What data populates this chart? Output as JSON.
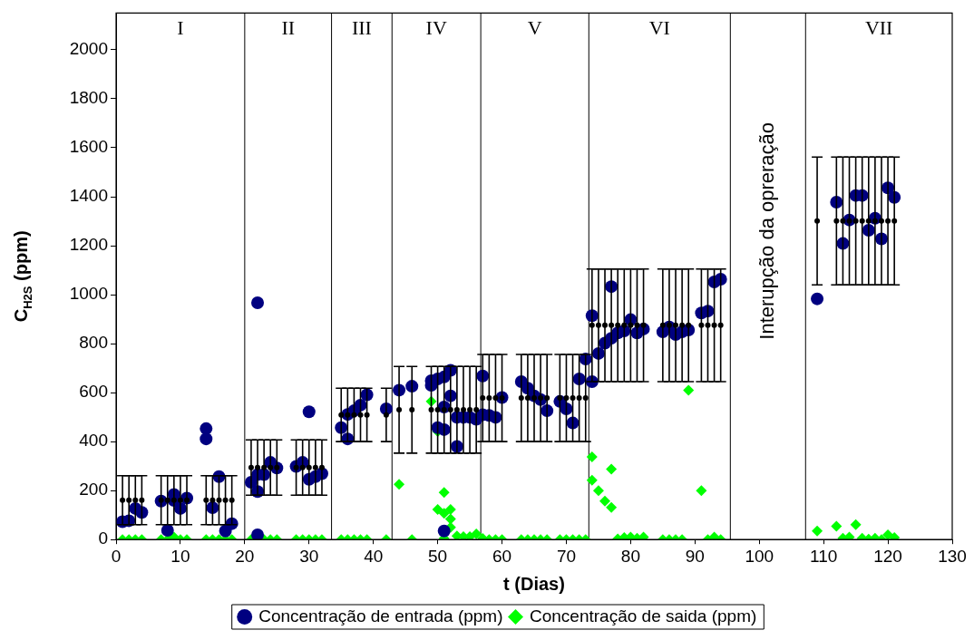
{
  "chart_data": {
    "type": "scatter",
    "xlabel": "t (Dias)",
    "ylabel": "C$_{H2S}$ (ppm)",
    "xlim": [
      0,
      130
    ],
    "xticks": [
      0,
      10,
      20,
      30,
      40,
      50,
      60,
      70,
      80,
      90,
      100,
      110,
      120,
      130
    ],
    "ylim": [
      0,
      2150
    ],
    "yticks": [
      0,
      200,
      400,
      600,
      800,
      1000,
      1200,
      1400,
      1600,
      1800,
      2000
    ],
    "grid": false,
    "legend": "bottom",
    "ref_lines": [
      {
        "axis": "x",
        "value": 20
      },
      {
        "axis": "x",
        "value": 33.5
      },
      {
        "axis": "x",
        "value": 42.9
      },
      {
        "axis": "x",
        "value": 56.7
      },
      {
        "axis": "x",
        "value": 73.5
      },
      {
        "axis": "x",
        "value": 95.5
      },
      {
        "axis": "x",
        "value": 107.2
      }
    ],
    "annotations": [
      "I",
      "II",
      "III",
      "IV",
      "V",
      "VI",
      "Interupção da opreração",
      "VII"
    ],
    "series": [
      {
        "color": "#000000",
        "marker": "circle",
        "x": [
          1,
          2,
          3,
          4,
          7,
          8,
          9,
          10,
          11,
          14,
          15,
          16,
          17,
          18,
          21,
          22,
          23,
          24,
          25,
          28,
          29,
          30,
          31,
          32,
          35,
          36,
          37,
          38,
          39,
          42,
          44,
          46,
          49,
          50,
          51,
          52,
          53,
          54,
          55,
          56,
          57,
          58,
          59,
          60,
          63,
          64,
          65,
          66,
          67,
          69,
          70,
          71,
          72,
          73,
          74,
          75,
          76,
          77,
          78,
          79,
          80,
          81,
          82,
          85,
          86,
          87,
          88,
          89,
          91,
          92,
          93,
          94,
          109,
          112,
          113,
          114,
          115,
          116,
          117,
          118,
          119,
          120,
          121
        ],
        "values": [
          161,
          161,
          161,
          161,
          161,
          161,
          161,
          161,
          161,
          161,
          161,
          161,
          161,
          161,
          294,
          294,
          294,
          294,
          294,
          294,
          294,
          294,
          294,
          294,
          509,
          509,
          509,
          509,
          509,
          509,
          530,
          530,
          530,
          530,
          530,
          530,
          530,
          530,
          530,
          530,
          578,
          578,
          578,
          578,
          578,
          578,
          578,
          578,
          578,
          578,
          578,
          578,
          578,
          578,
          875,
          875,
          875,
          875,
          875,
          875,
          875,
          875,
          875,
          875,
          875,
          875,
          875,
          875,
          875,
          875,
          875,
          875,
          1301,
          1301,
          1301,
          1301,
          1301,
          1301,
          1301,
          1301,
          1301,
          1301,
          1301
        ],
        "errors": [
          100,
          100,
          100,
          100,
          100,
          100,
          100,
          100,
          100,
          100,
          100,
          100,
          100,
          100,
          113,
          113,
          113,
          113,
          113,
          113,
          113,
          113,
          113,
          113,
          109,
          109,
          109,
          109,
          109,
          109,
          177,
          177,
          177,
          177,
          177,
          177,
          177,
          177,
          177,
          177,
          178,
          178,
          178,
          178,
          178,
          178,
          178,
          178,
          178,
          178,
          178,
          178,
          178,
          178,
          230,
          230,
          230,
          230,
          230,
          230,
          230,
          230,
          230,
          230,
          230,
          230,
          230,
          230,
          230,
          230,
          230,
          230,
          261,
          261,
          261,
          261,
          261,
          261,
          261,
          261,
          261,
          261,
          261
        ]
      },
      {
        "name": "Concentração de entrada (ppm)",
        "color": "#000080",
        "marker": "circle",
        "x": [
          1,
          2,
          3,
          4,
          7,
          8,
          9,
          9,
          10,
          11,
          14,
          14,
          15,
          16,
          17,
          18,
          21,
          22,
          22,
          23,
          24,
          25,
          22,
          22,
          28,
          29,
          30,
          30,
          31,
          32,
          35,
          36,
          36,
          37,
          38,
          39,
          42,
          44,
          46,
          49,
          49,
          50,
          51,
          52,
          52,
          51,
          50,
          51,
          53,
          51,
          53,
          54,
          55,
          56,
          57,
          57,
          58,
          59,
          60,
          63,
          64,
          65,
          66,
          67,
          69,
          70,
          71,
          72,
          73,
          74,
          74,
          75,
          76,
          77,
          77,
          78,
          79,
          80,
          81,
          82,
          85,
          86,
          87,
          88,
          89,
          91,
          92,
          93,
          94,
          109,
          112,
          113,
          114,
          115,
          116,
          117,
          118,
          119,
          120,
          121
        ],
        "values": [
          73,
          77,
          127,
          111,
          157,
          38,
          184,
          160,
          127,
          169,
          453,
          411,
          130,
          257,
          35,
          65,
          234,
          196,
          265,
          265,
          315,
          292,
          19,
          967,
          299,
          315,
          522,
          246,
          257,
          269,
          457,
          411,
          511,
          526,
          549,
          591,
          534,
          610,
          626,
          649,
          630,
          656,
          664,
          691,
          587,
          541,
          457,
          449,
          380,
          35,
          499,
          499,
          499,
          491,
          668,
          510,
          507,
          499,
          580,
          645,
          618,
          587,
          572,
          526,
          564,
          534,
          476,
          656,
          737,
          914,
          645,
          760,
          802,
          822,
          1033,
          844,
          852,
          898,
          844,
          860,
          848,
          868,
          837,
          848,
          856,
          925,
          933,
          1052,
          1063,
          983,
          1378,
          1209,
          1305,
          1405,
          1405,
          1263,
          1312,
          1228,
          1436,
          1397
        ]
      },
      {
        "name": "Concentração de saida (ppm)",
        "color": "#00ff00",
        "marker": "diamond",
        "x": [
          1,
          2,
          3,
          4,
          7,
          8,
          9,
          10,
          11,
          14,
          15,
          16,
          17,
          18,
          21,
          22,
          23,
          24,
          25,
          28,
          29,
          30,
          31,
          32,
          35,
          36,
          37,
          38,
          39,
          42,
          44,
          46,
          49,
          50,
          51,
          50,
          51,
          52,
          52,
          52,
          51,
          53,
          54,
          55,
          56,
          57,
          58,
          59,
          60,
          63,
          64,
          65,
          66,
          67,
          69,
          70,
          71,
          72,
          73,
          74,
          74,
          75,
          76,
          77,
          77,
          78,
          79,
          80,
          81,
          82,
          85,
          86,
          87,
          88,
          89,
          91,
          92,
          93,
          94,
          109,
          112,
          113,
          114,
          115,
          116,
          117,
          118,
          119,
          120,
          121
        ],
        "values": [
          0,
          0,
          0,
          0,
          0,
          0,
          10,
          0,
          0,
          0,
          0,
          0,
          0,
          0,
          0,
          0,
          0,
          0,
          0,
          0,
          0,
          0,
          0,
          0,
          0,
          0,
          0,
          0,
          0,
          0,
          226,
          0,
          564,
          441,
          192,
          123,
          107,
          123,
          84,
          50,
          4,
          15,
          12,
          12,
          23,
          4,
          0,
          0,
          0,
          0,
          0,
          0,
          0,
          0,
          0,
          0,
          0,
          0,
          0,
          338,
          242,
          200,
          157,
          131,
          288,
          3,
          8,
          10,
          5,
          10,
          0,
          0,
          0,
          0,
          610,
          200,
          0,
          10,
          0,
          35,
          54,
          5,
          10,
          61,
          5,
          2,
          5,
          0,
          19,
          8
        ]
      }
    ]
  }
}
